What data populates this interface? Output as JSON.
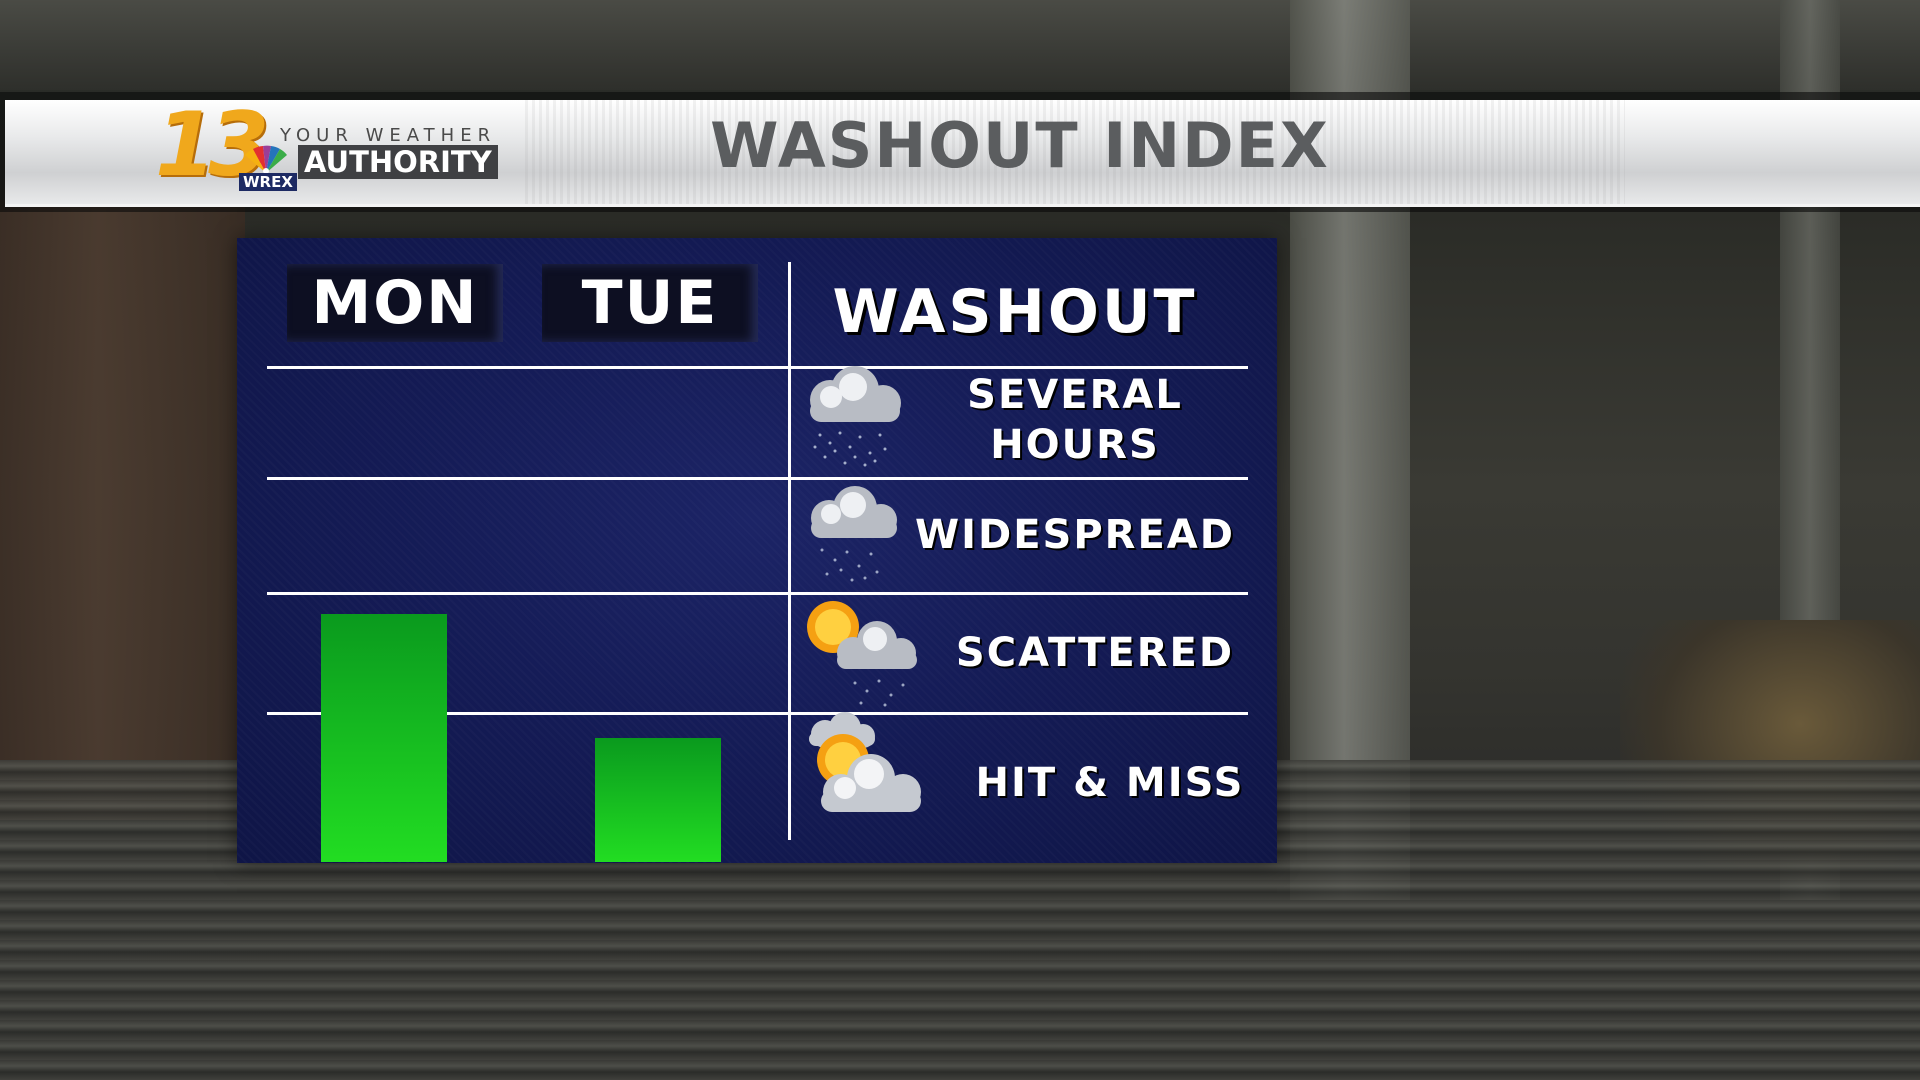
{
  "header": {
    "title": "WASHOUT INDEX"
  },
  "logo": {
    "number": "13",
    "call_sign": "WREX",
    "tagline_top": "YOUR WEATHER",
    "tagline_bottom": "AUTHORITY"
  },
  "table": {
    "column_header": "WASHOUT",
    "levels": [
      {
        "label_line1": "SEVERAL",
        "label_line2": "HOURS",
        "icon": "heavy-rain-cloud-icon"
      },
      {
        "label_line1": "WIDESPREAD",
        "label_line2": "",
        "icon": "rain-cloud-icon"
      },
      {
        "label_line1": "SCATTERED",
        "label_line2": "",
        "icon": "sun-cloud-rain-icon"
      },
      {
        "label_line1": "HIT & MISS",
        "label_line2": "",
        "icon": "sun-cloud-icon"
      }
    ]
  },
  "chart_data": {
    "type": "bar",
    "title": "WASHOUT INDEX",
    "categories": [
      "MON",
      "TUE"
    ],
    "values": [
      2.0,
      1.0
    ],
    "ylim": [
      0,
      4
    ],
    "yticklabels": [
      "HIT & MISS",
      "SCATTERED",
      "WIDESPREAD",
      "SEVERAL HOURS"
    ],
    "bar_color": "#22dd22",
    "grid": true
  }
}
